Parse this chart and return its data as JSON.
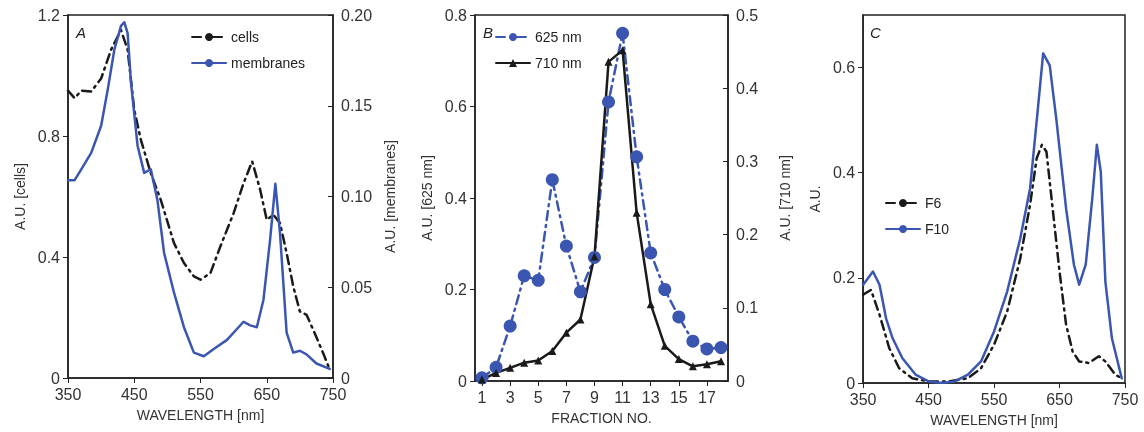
{
  "chart_data": [
    {
      "type": "line",
      "annotations": [
        "A"
      ],
      "xlabel": "WAVELENGTH [nm]",
      "ylabel": "A.U. [cells]",
      "y2label": "A.U. [membranes]",
      "xlim": [
        350,
        750
      ],
      "xticks": [
        350,
        450,
        550,
        650,
        750
      ],
      "ylim": [
        0,
        1.2
      ],
      "yticks": [
        0,
        0.4,
        0.8,
        1.2
      ],
      "y2lim": [
        0,
        0.2
      ],
      "y2ticks": [
        0,
        0.05,
        {
          "value": 0.1,
          "label": "0.10"
        },
        0.15,
        {
          "value": 0.2,
          "label": "0.20"
        }
      ],
      "grid": false,
      "legend": "top right",
      "marker": "none",
      "series": [
        {
          "name": "cells",
          "color": "#1a1a1a",
          "line_style": "dashed",
          "x": [
            350,
            360,
            370,
            385,
            400,
            415,
            430,
            440,
            450,
            460,
            475,
            490,
            510,
            525,
            540,
            550,
            565,
            580,
            600,
            615,
            628,
            640,
            650,
            660,
            670,
            680,
            690,
            700,
            710,
            720,
            735,
            745
          ],
          "values": [
            0.95,
            0.925,
            0.95,
            0.947,
            0.99,
            1.085,
            1.15,
            1.085,
            0.887,
            0.787,
            0.677,
            0.589,
            0.446,
            0.38,
            0.336,
            0.325,
            0.347,
            0.435,
            0.545,
            0.644,
            0.716,
            0.623,
            0.523,
            0.54,
            0.512,
            0.413,
            0.303,
            0.22,
            0.209,
            0.16,
            0.083,
            0.028
          ]
        },
        {
          "name": "membranes",
          "color": "#3a56b0",
          "line_style": "solid",
          "axis": "y2",
          "x": [
            350,
            360,
            370,
            385,
            400,
            410,
            420,
            430,
            435,
            440,
            445,
            455,
            465,
            475,
            485,
            495,
            510,
            525,
            540,
            555,
            570,
            590,
            605,
            615,
            625,
            635,
            645,
            655,
            663,
            670,
            680,
            690,
            700,
            710,
            725,
            745
          ],
          "values": [
            0.109,
            0.109,
            0.115,
            0.124,
            0.139,
            0.159,
            0.181,
            0.194,
            0.196,
            0.19,
            0.163,
            0.128,
            0.113,
            0.115,
            0.098,
            0.069,
            0.047,
            0.028,
            0.014,
            0.012,
            0.016,
            0.021,
            0.027,
            0.031,
            0.029,
            0.028,
            0.043,
            0.076,
            0.107,
            0.08,
            0.025,
            0.014,
            0.015,
            0.013,
            0.008,
            0.005
          ]
        }
      ]
    },
    {
      "type": "line",
      "annotations": [
        "B"
      ],
      "xlabel": "FRACTION NO.",
      "ylabel": "A.U. [625 nm]",
      "y2label": "A.U. [710 nm]",
      "xlim": [
        0.5,
        18.5
      ],
      "xticks": [
        1,
        3,
        5,
        7,
        9,
        11,
        13,
        15,
        17
      ],
      "ylim": [
        0,
        0.8
      ],
      "yticks": [
        0,
        0.2,
        0.4,
        0.6,
        0.8
      ],
      "y2lim": [
        0,
        0.5
      ],
      "y2ticks": [
        0,
        0.1,
        0.2,
        0.3,
        0.4,
        0.5
      ],
      "grid": false,
      "legend": "top left",
      "series": [
        {
          "name": "625 nm",
          "color": "#3a56b0",
          "line_style": "dashed",
          "marker": "circle",
          "x": [
            1,
            2,
            3,
            4,
            5,
            6,
            7,
            8,
            9,
            10,
            11,
            12,
            13,
            14,
            15,
            16,
            17,
            18
          ],
          "values": [
            0.007,
            0.03,
            0.12,
            0.23,
            0.22,
            0.44,
            0.295,
            0.195,
            0.27,
            0.61,
            0.76,
            0.49,
            0.28,
            0.2,
            0.14,
            0.087,
            0.07,
            0.073
          ]
        },
        {
          "name": "710 nm",
          "color": "#1a1a1a",
          "line_style": "solid",
          "marker": "triangle",
          "axis": "y2",
          "x": [
            1,
            2,
            3,
            4,
            5,
            6,
            7,
            8,
            9,
            10,
            11,
            12,
            13,
            14,
            15,
            16,
            17,
            18
          ],
          "values": [
            0.002,
            0.011,
            0.018,
            0.025,
            0.028,
            0.041,
            0.066,
            0.084,
            0.17,
            0.436,
            0.452,
            0.23,
            0.105,
            0.048,
            0.03,
            0.02,
            0.023,
            0.027
          ]
        }
      ]
    },
    {
      "type": "line",
      "annotations": [
        "C"
      ],
      "xlabel": "WAVELENGTH [nm]",
      "ylabel": "A.U.",
      "xlim": [
        350,
        750
      ],
      "xticks": [
        350,
        450,
        550,
        650,
        750
      ],
      "ylim": [
        0,
        0.7
      ],
      "yticks": [
        0,
        0.2,
        0.4,
        0.6
      ],
      "grid": false,
      "legend": "left",
      "marker": "none",
      "series": [
        {
          "name": "F6",
          "color": "#1a1a1a",
          "line_style": "dashed",
          "x": [
            350,
            362,
            375,
            390,
            405,
            425,
            450,
            480,
            510,
            530,
            550,
            570,
            590,
            605,
            615,
            623,
            630,
            640,
            650,
            660,
            670,
            680,
            695,
            710,
            720,
            735,
            745
          ],
          "values": [
            0.168,
            0.177,
            0.13,
            0.066,
            0.028,
            0.009,
            0.003,
            0.003,
            0.009,
            0.028,
            0.073,
            0.136,
            0.237,
            0.339,
            0.427,
            0.453,
            0.44,
            0.326,
            0.212,
            0.111,
            0.06,
            0.041,
            0.038,
            0.051,
            0.041,
            0.016,
            0.009
          ]
        },
        {
          "name": "F10",
          "color": "#3a56b0",
          "line_style": "solid",
          "x": [
            350,
            365,
            375,
            385,
            395,
            410,
            430,
            450,
            470,
            490,
            510,
            530,
            550,
            570,
            590,
            605,
            615,
            625,
            635,
            645,
            660,
            672,
            680,
            690,
            700,
            707,
            713,
            720,
            730,
            745
          ],
          "values": [
            0.187,
            0.212,
            0.187,
            0.123,
            0.085,
            0.047,
            0.016,
            0.003,
            0,
            0.003,
            0.016,
            0.041,
            0.098,
            0.174,
            0.275,
            0.37,
            0.497,
            0.627,
            0.604,
            0.503,
            0.332,
            0.225,
            0.187,
            0.225,
            0.351,
            0.453,
            0.402,
            0.193,
            0.085,
            0.009
          ]
        }
      ]
    }
  ]
}
